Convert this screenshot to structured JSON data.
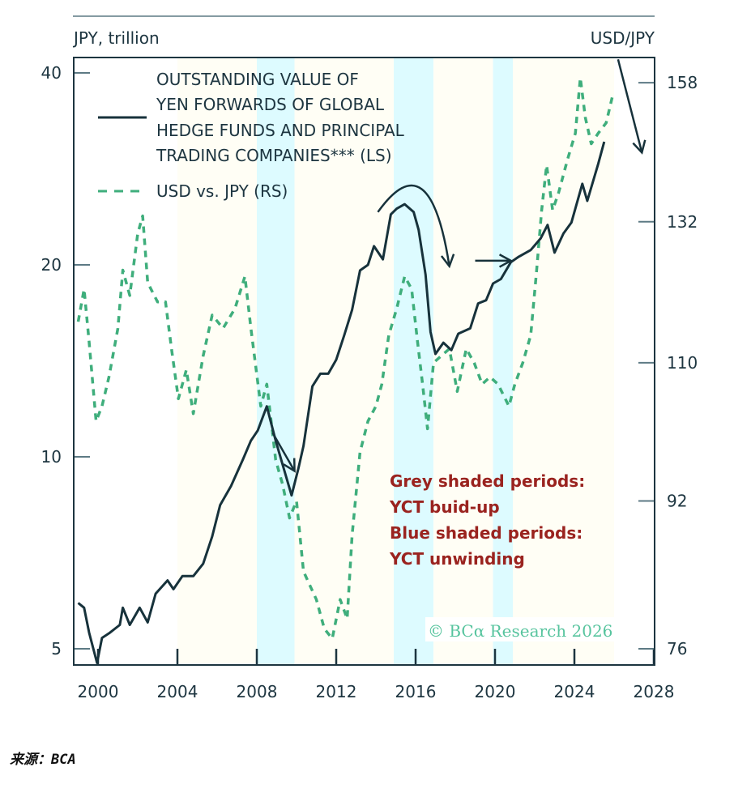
{
  "chart_data": {
    "type": "line",
    "title": "",
    "ylabel_left": "JPY, trillion",
    "ylabel_right": "USD/JPY",
    "xlabel": "",
    "x_ticks": [
      "2000",
      "2004",
      "2008",
      "2012",
      "2016",
      "2020",
      "2024",
      "2028"
    ],
    "xlim": [
      1998.8,
      2028
    ],
    "y_left": {
      "scale": "log",
      "ticks": [
        5,
        10,
        20,
        40
      ],
      "tick_labels": [
        "5",
        "10",
        "20",
        "40"
      ],
      "ylim": [
        4.6,
        44
      ]
    },
    "y_right": {
      "scale": "log",
      "ticks": [
        76,
        92,
        110,
        132,
        158
      ],
      "tick_labels": [
        "76",
        "92",
        "110",
        "132",
        "158"
      ],
      "ylim": [
        74.6,
        165
      ]
    },
    "grid": false,
    "legend": {
      "placement": "top-left",
      "entries": [
        {
          "label": "OUTSTANDING VALUE OF YEN FORWARDS OF GLOBAL HEDGE FUNDS AND PRINCIPAL TRADING COMPANIES*** (LS)",
          "lines": [
            "OUTSTANDING VALUE OF",
            "YEN FORWARDS OF GLOBAL",
            "HEDGE FUNDS AND PRINCIPAL",
            "TRADING COMPANIES*** (LS)"
          ],
          "style": "solid",
          "color": "#17323b"
        },
        {
          "label": "USD vs. JPY (RS)",
          "lines": [
            "USD vs. JPY (RS)"
          ],
          "style": "dashed",
          "color": "#3fae7c"
        }
      ]
    },
    "shaded_periods": [
      {
        "type": "grey",
        "label": "YCT build-up",
        "start": 2004.0,
        "end": 2008.0,
        "color": "#fffef5"
      },
      {
        "type": "blue",
        "label": "YCT unwinding",
        "start": 2008.0,
        "end": 2009.9,
        "color": "#ddfbff"
      },
      {
        "type": "grey",
        "label": "YCT build-up",
        "start": 2009.9,
        "end": 2014.9,
        "color": "#fffef5"
      },
      {
        "type": "blue",
        "label": "YCT unwinding",
        "start": 2014.9,
        "end": 2016.9,
        "color": "#ddfbff"
      },
      {
        "type": "grey",
        "label": "YCT build-up",
        "start": 2016.9,
        "end": 2019.9,
        "color": "#fffef5"
      },
      {
        "type": "blue",
        "label": "YCT unwinding",
        "start": 2019.9,
        "end": 2020.9,
        "color": "#ddfbff"
      },
      {
        "type": "grey",
        "label": "YCT build-up",
        "start": 2020.9,
        "end": 2026.0,
        "color": "#fffef5"
      }
    ],
    "series": [
      {
        "name": "Outstanding value of yen forwards of global hedge funds and principal trading companies (LS)",
        "axis": "left",
        "style": "solid",
        "color": "#17323b",
        "points": [
          [
            1999.0,
            5.9
          ],
          [
            1999.3,
            5.8
          ],
          [
            1999.55,
            5.3
          ],
          [
            1999.95,
            4.75
          ],
          [
            2000.2,
            5.2
          ],
          [
            2000.6,
            5.3
          ],
          [
            2001.1,
            5.45
          ],
          [
            2001.25,
            5.8
          ],
          [
            2001.6,
            5.45
          ],
          [
            2002.1,
            5.8
          ],
          [
            2002.5,
            5.5
          ],
          [
            2002.9,
            6.1
          ],
          [
            2003.5,
            6.4
          ],
          [
            2003.8,
            6.2
          ],
          [
            2004.25,
            6.5
          ],
          [
            2004.8,
            6.5
          ],
          [
            2005.3,
            6.8
          ],
          [
            2005.75,
            7.5
          ],
          [
            2006.15,
            8.4
          ],
          [
            2006.7,
            9.0
          ],
          [
            2007.3,
            9.9
          ],
          [
            2007.7,
            10.6
          ],
          [
            2008.05,
            11.0
          ],
          [
            2008.5,
            12.0
          ],
          [
            2008.95,
            10.6
          ],
          [
            2009.35,
            9.6
          ],
          [
            2009.75,
            8.7
          ],
          [
            2010.1,
            9.6
          ],
          [
            2010.35,
            10.4
          ],
          [
            2010.8,
            12.9
          ],
          [
            2011.2,
            13.5
          ],
          [
            2011.6,
            13.5
          ],
          [
            2012.0,
            14.2
          ],
          [
            2012.4,
            15.5
          ],
          [
            2012.8,
            17.0
          ],
          [
            2013.2,
            19.6
          ],
          [
            2013.6,
            20.0
          ],
          [
            2013.9,
            21.4
          ],
          [
            2014.35,
            20.4
          ],
          [
            2014.75,
            24.0
          ],
          [
            2015.05,
            24.5
          ],
          [
            2015.45,
            24.9
          ],
          [
            2015.9,
            24.2
          ],
          [
            2016.15,
            22.7
          ],
          [
            2016.5,
            19.3
          ],
          [
            2016.75,
            15.7
          ],
          [
            2017.0,
            14.5
          ],
          [
            2017.4,
            15.1
          ],
          [
            2017.8,
            14.7
          ],
          [
            2018.15,
            15.6
          ],
          [
            2018.75,
            15.9
          ],
          [
            2019.15,
            17.4
          ],
          [
            2019.55,
            17.6
          ],
          [
            2019.9,
            18.7
          ],
          [
            2020.3,
            19.0
          ],
          [
            2020.8,
            20.2
          ],
          [
            2021.2,
            20.6
          ],
          [
            2021.8,
            21.1
          ],
          [
            2022.3,
            22.0
          ],
          [
            2022.65,
            23.1
          ],
          [
            2023.0,
            20.9
          ],
          [
            2023.45,
            22.4
          ],
          [
            2023.85,
            23.3
          ],
          [
            2024.4,
            26.8
          ],
          [
            2024.65,
            25.2
          ],
          [
            2025.2,
            28.8
          ],
          [
            2025.5,
            31.2
          ]
        ]
      },
      {
        "name": "USD vs. JPY (RS)",
        "axis": "right",
        "style": "dashed",
        "color": "#3fae7c",
        "points": [
          [
            1999.0,
            116
          ],
          [
            1999.3,
            121
          ],
          [
            1999.55,
            113
          ],
          [
            1999.9,
            102
          ],
          [
            2000.2,
            104
          ],
          [
            2000.55,
            108
          ],
          [
            2001.0,
            115
          ],
          [
            2001.25,
            124
          ],
          [
            2001.6,
            120
          ],
          [
            2002.0,
            130
          ],
          [
            2002.25,
            133
          ],
          [
            2002.5,
            122
          ],
          [
            2003.0,
            119
          ],
          [
            2003.4,
            119
          ],
          [
            2003.7,
            112
          ],
          [
            2004.05,
            105
          ],
          [
            2004.45,
            109
          ],
          [
            2004.8,
            103
          ],
          [
            2005.3,
            111
          ],
          [
            2005.75,
            117
          ],
          [
            2006.3,
            115
          ],
          [
            2006.9,
            118
          ],
          [
            2007.4,
            123
          ],
          [
            2007.7,
            115
          ],
          [
            2008.2,
            104
          ],
          [
            2008.5,
            107
          ],
          [
            2008.95,
            97
          ],
          [
            2009.3,
            94
          ],
          [
            2009.65,
            90
          ],
          [
            2010.0,
            92
          ],
          [
            2010.35,
            84
          ],
          [
            2011.0,
            81
          ],
          [
            2011.4,
            78
          ],
          [
            2011.8,
            77
          ],
          [
            2012.2,
            81
          ],
          [
            2012.55,
            79
          ],
          [
            2012.8,
            88
          ],
          [
            2013.2,
            98
          ],
          [
            2013.6,
            102
          ],
          [
            2014.0,
            104
          ],
          [
            2014.3,
            107
          ],
          [
            2014.65,
            114
          ],
          [
            2015.05,
            118
          ],
          [
            2015.45,
            123
          ],
          [
            2015.8,
            121
          ],
          [
            2016.1,
            113
          ],
          [
            2016.35,
            107
          ],
          [
            2016.6,
            101
          ],
          [
            2016.9,
            110
          ],
          [
            2017.3,
            111
          ],
          [
            2017.7,
            112
          ],
          [
            2018.1,
            106
          ],
          [
            2018.55,
            112
          ],
          [
            2018.95,
            110
          ],
          [
            2019.35,
            107
          ],
          [
            2019.75,
            108
          ],
          [
            2020.15,
            107
          ],
          [
            2020.7,
            104
          ],
          [
            2021.0,
            107
          ],
          [
            2021.4,
            110
          ],
          [
            2021.8,
            114
          ],
          [
            2022.1,
            124
          ],
          [
            2022.35,
            134
          ],
          [
            2022.6,
            142
          ],
          [
            2022.9,
            134
          ],
          [
            2023.2,
            137
          ],
          [
            2023.65,
            143
          ],
          [
            2024.05,
            148
          ],
          [
            2024.3,
            159
          ],
          [
            2024.55,
            151
          ],
          [
            2024.85,
            146
          ],
          [
            2025.2,
            148
          ],
          [
            2025.6,
            150
          ],
          [
            2025.9,
            155
          ]
        ]
      }
    ],
    "annotations": {
      "text_lines": [
        "Grey shaded periods:",
        "YCT buid-up",
        "Blue shaded periods:",
        "YCT unwinding"
      ],
      "color": "#9a231f",
      "arrows": [
        {
          "name": "arrow-2009-down",
          "from": [
            2008.8,
            10.9
          ],
          "to": [
            2009.9,
            9.5
          ],
          "axis": "left",
          "shape": "straight"
        },
        {
          "name": "arrow-2016-curve",
          "from": [
            2014.1,
            24.2
          ],
          "to": [
            2017.7,
            19.9
          ],
          "axis": "left",
          "shape": "curved"
        },
        {
          "name": "arrow-2019-right",
          "from": [
            2019.0,
            20.3
          ],
          "to": [
            2020.8,
            20.3
          ],
          "axis": "left",
          "shape": "straight"
        },
        {
          "name": "arrow-2026-down",
          "from": [
            2026.2,
            42
          ],
          "to": [
            2027.4,
            30
          ],
          "axis": "left",
          "shape": "straight"
        }
      ]
    },
    "watermark": "© BCα Research 2026"
  },
  "source": "来源：BCA"
}
